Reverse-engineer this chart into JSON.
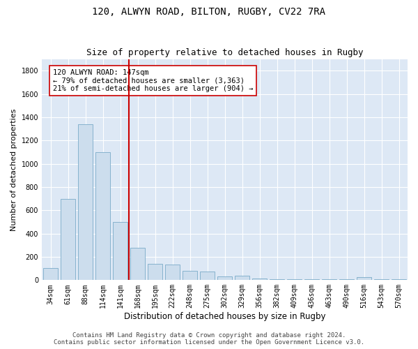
{
  "title": "120, ALWYN ROAD, BILTON, RUGBY, CV22 7RA",
  "subtitle": "Size of property relative to detached houses in Rugby",
  "xlabel": "Distribution of detached houses by size in Rugby",
  "ylabel": "Number of detached properties",
  "categories": [
    "34sqm",
    "61sqm",
    "88sqm",
    "114sqm",
    "141sqm",
    "168sqm",
    "195sqm",
    "222sqm",
    "248sqm",
    "275sqm",
    "302sqm",
    "329sqm",
    "356sqm",
    "382sqm",
    "409sqm",
    "436sqm",
    "463sqm",
    "490sqm",
    "516sqm",
    "543sqm",
    "570sqm"
  ],
  "values": [
    105,
    700,
    1340,
    1100,
    500,
    275,
    140,
    135,
    80,
    75,
    30,
    35,
    15,
    10,
    5,
    5,
    5,
    5,
    25,
    5,
    5
  ],
  "bar_color": "#ccdded",
  "bar_edge_color": "#7aaac8",
  "vline_color": "#cc0000",
  "annotation_text": "120 ALWYN ROAD: 147sqm\n← 79% of detached houses are smaller (3,363)\n21% of semi-detached houses are larger (904) →",
  "annotation_box_color": "#ffffff",
  "annotation_box_edge": "#cc0000",
  "ylim": [
    0,
    1900
  ],
  "yticks": [
    0,
    200,
    400,
    600,
    800,
    1000,
    1200,
    1400,
    1600,
    1800
  ],
  "background_color": "#dde8f5",
  "footer": "Contains HM Land Registry data © Crown copyright and database right 2024.\nContains public sector information licensed under the Open Government Licence v3.0.",
  "title_fontsize": 10,
  "subtitle_fontsize": 9,
  "xlabel_fontsize": 8.5,
  "ylabel_fontsize": 8,
  "tick_fontsize": 7,
  "footer_fontsize": 6.5,
  "figsize": [
    6.0,
    5.0
  ],
  "dpi": 100
}
